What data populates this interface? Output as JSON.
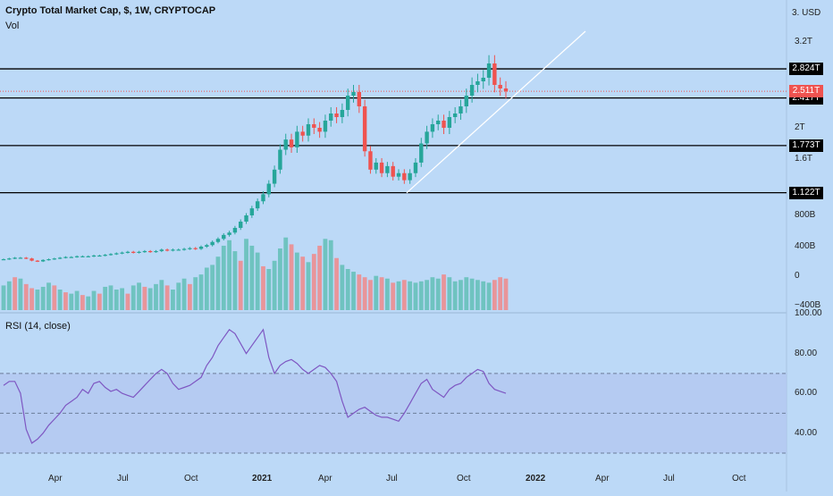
{
  "chart_data": {
    "type": "candlestick",
    "title": "Crypto Total Market Cap, $, 1W, CRYPTOCAP",
    "currency_label": "3. USD",
    "volume_label": "Vol",
    "rsi_label": "RSI (14, close)",
    "price_axis": {
      "ticks": [
        "3.2T",
        "2T",
        "1.6T",
        "800B",
        "400B",
        "0",
        "−400B"
      ],
      "tick_values": [
        3.2,
        2.0,
        1.6,
        0.8,
        0.4,
        0.0,
        -0.4
      ]
    },
    "price_levels": [
      {
        "label": "2.824T",
        "value": 2.824
      },
      {
        "label": "2.417T",
        "value": 2.417
      },
      {
        "label": "1.773T",
        "value": 1.773
      },
      {
        "label": "1.122T",
        "value": 1.122
      }
    ],
    "last_price": {
      "label": "2.511T",
      "value": 2.511
    },
    "rsi_axis": {
      "ticks": [
        "100.00",
        "80.00",
        "60.00",
        "40.00"
      ],
      "tick_values": [
        100,
        80,
        60,
        40
      ],
      "band": [
        30,
        70
      ],
      "mid": 50
    },
    "x_axis": {
      "ticks": [
        "Apr",
        "Jul",
        "Oct",
        "2021",
        "Apr",
        "Jul",
        "Oct",
        "2022",
        "Apr",
        "Jul",
        "Oct"
      ],
      "bold_ticks": [
        "2021",
        "2022"
      ]
    },
    "price_series": [
      0.23,
      0.24,
      0.25,
      0.25,
      0.24,
      0.21,
      0.2,
      0.22,
      0.23,
      0.24,
      0.25,
      0.26,
      0.26,
      0.27,
      0.27,
      0.27,
      0.28,
      0.28,
      0.29,
      0.3,
      0.31,
      0.32,
      0.33,
      0.32,
      0.33,
      0.34,
      0.33,
      0.34,
      0.36,
      0.35,
      0.36,
      0.36,
      0.37,
      0.38,
      0.37,
      0.4,
      0.42,
      0.46,
      0.5,
      0.55,
      0.58,
      0.64,
      0.72,
      0.8,
      0.9,
      1.0,
      1.1,
      1.25,
      1.45,
      1.72,
      1.85,
      1.75,
      1.95,
      1.9,
      2.05,
      2.0,
      1.95,
      2.1,
      2.2,
      2.15,
      2.25,
      2.45,
      2.5,
      2.3,
      1.7,
      1.45,
      1.55,
      1.4,
      1.5,
      1.35,
      1.4,
      1.3,
      1.4,
      1.55,
      1.8,
      1.95,
      2.05,
      2.1,
      2.0,
      2.15,
      2.2,
      2.3,
      2.45,
      2.6,
      2.65,
      2.7,
      2.9,
      2.6,
      2.55,
      2.51
    ],
    "volume_series": [
      180,
      210,
      240,
      230,
      190,
      160,
      150,
      170,
      200,
      180,
      150,
      130,
      120,
      140,
      110,
      100,
      140,
      120,
      170,
      180,
      150,
      160,
      120,
      180,
      200,
      170,
      160,
      190,
      220,
      180,
      150,
      200,
      230,
      190,
      240,
      260,
      310,
      330,
      390,
      470,
      510,
      430,
      360,
      520,
      470,
      420,
      320,
      300,
      360,
      450,
      530,
      480,
      420,
      390,
      350,
      410,
      470,
      520,
      510,
      380,
      330,
      300,
      280,
      260,
      240,
      220,
      250,
      240,
      230,
      200,
      210,
      220,
      210,
      200,
      210,
      220,
      240,
      230,
      260,
      240,
      210,
      220,
      240,
      230,
      220,
      210,
      200,
      220,
      240,
      230
    ],
    "volume_up": [
      true,
      true,
      false,
      true,
      false,
      false,
      true,
      true,
      true,
      false,
      true,
      false,
      true,
      true,
      false,
      true,
      true,
      false,
      true,
      true,
      true,
      true,
      false,
      true,
      true,
      false,
      true,
      true,
      true,
      false,
      true,
      true,
      true,
      false,
      true,
      true,
      true,
      true,
      true,
      true,
      true,
      true,
      false,
      true,
      true,
      true,
      false,
      true,
      true,
      true,
      true,
      false,
      true,
      false,
      true,
      false,
      false,
      true,
      true,
      false,
      true,
      true,
      true,
      false,
      false,
      false,
      true,
      false,
      true,
      false,
      true,
      false,
      true,
      true,
      true,
      true,
      true,
      true,
      false,
      true,
      true,
      true,
      true,
      true,
      true,
      true,
      true,
      false,
      false,
      false
    ],
    "rsi_series": [
      64,
      66,
      66,
      60,
      42,
      35,
      37,
      40,
      44,
      47,
      50,
      54,
      56,
      58,
      62,
      60,
      65,
      66,
      63,
      61,
      62,
      60,
      59,
      58,
      61,
      64,
      67,
      70,
      72,
      70,
      65,
      62,
      63,
      64,
      66,
      68,
      74,
      78,
      84,
      88,
      92,
      90,
      85,
      80,
      84,
      88,
      92,
      78,
      70,
      74,
      76,
      77,
      75,
      72,
      70,
      72,
      74,
      73,
      70,
      66,
      56,
      48,
      50,
      52,
      53,
      51,
      49,
      48,
      48,
      47,
      46,
      50,
      55,
      60,
      65,
      67,
      62,
      60,
      58,
      62,
      64,
      65,
      68,
      70,
      72,
      71,
      65,
      62,
      61,
      60
    ]
  }
}
